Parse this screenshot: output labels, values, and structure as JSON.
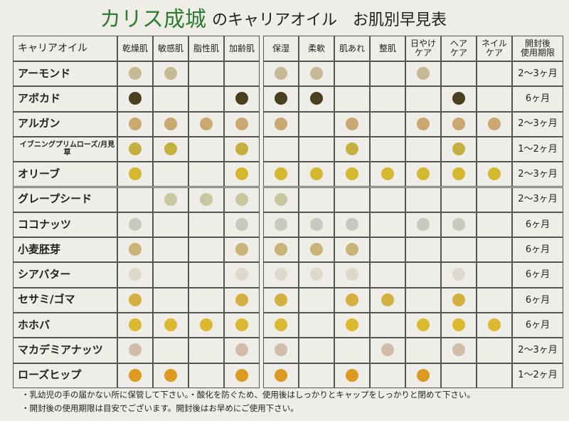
{
  "brand": "カリス成城",
  "title": "のキャリアオイル　お肌別早見表",
  "table": {
    "corner": "キャリアオイル",
    "columns": [
      "乾燥肌",
      "敏感肌",
      "脂性肌",
      "加齢肌",
      "保湿",
      "柔軟",
      "肌あれ",
      "整肌",
      "日やけ\nケア",
      "ヘア\nケア",
      "ネイル\nケア"
    ],
    "period_header": "開封後\n使用期限",
    "rows": [
      {
        "name": "アーモンド",
        "dots": [
          "#c8b996",
          "#c8b996",
          null,
          null,
          "#c8b996",
          "#c8b996",
          null,
          null,
          "#c8b996",
          null,
          null
        ],
        "period": "2〜3ヶ月"
      },
      {
        "name": "アボカド",
        "dots": [
          "#4a4020",
          null,
          null,
          "#4a4020",
          "#4a4020",
          "#4a4020",
          null,
          null,
          null,
          "#4a4020",
          null
        ],
        "period": "6ヶ月"
      },
      {
        "name": "アルガン",
        "dots": [
          "#c9a872",
          "#c9a872",
          "#c9a872",
          "#c9a872",
          "#c9a872",
          null,
          "#c9a872",
          null,
          "#c9a872",
          "#c9a872",
          "#c9a872"
        ],
        "period": "2〜3ヶ月"
      },
      {
        "name": "イブニングプリムローズ/月見草",
        "dots": [
          "#c4b040",
          "#c4b040",
          null,
          "#c4b040",
          null,
          null,
          "#c4b040",
          null,
          null,
          "#c4b040",
          null
        ],
        "period": "1〜2ヶ月"
      },
      {
        "name": "オリーブ",
        "dots": [
          "#d4b830",
          null,
          null,
          "#d4b830",
          "#d4b830",
          "#d4b830",
          "#d4b830",
          "#d4b830",
          "#d4b830",
          "#d4b830",
          "#d4b830"
        ],
        "period": "2〜3ヶ月"
      },
      {
        "name": "グレープシード",
        "dots": [
          null,
          "#c8c8a0",
          "#c8c8a0",
          "#c8c8a0",
          "#c8c8a0",
          null,
          null,
          null,
          null,
          null,
          null
        ],
        "period": "2〜3ヶ月"
      },
      {
        "name": "ココナッツ",
        "dots": [
          "#c8c8c0",
          null,
          null,
          "#c8c8c0",
          "#c8c8c0",
          "#c8c8c0",
          "#c8c8c0",
          null,
          "#c8c8c0",
          "#c8c8c0",
          null
        ],
        "period": "6ヶ月"
      },
      {
        "name": "小麦胚芽",
        "dots": [
          "#c8b478",
          null,
          null,
          "#c8b478",
          "#c8b478",
          "#c8b478",
          "#c8b478",
          null,
          null,
          null,
          null
        ],
        "period": "6ヶ月"
      },
      {
        "name": "シアバター",
        "dots": [
          "#dcd8cc",
          null,
          null,
          "#dcd8cc",
          "#dcd8cc",
          "#dcd8cc",
          "#dcd8cc",
          null,
          null,
          "#dcd8cc",
          null
        ],
        "period": "6ヶ月"
      },
      {
        "name": "セサミ/ゴマ",
        "dots": [
          "#d4b040",
          null,
          null,
          "#d4b040",
          "#d4b040",
          null,
          "#d4b040",
          "#d4b040",
          null,
          "#d4b040",
          null
        ],
        "period": "6ヶ月"
      },
      {
        "name": "ホホバ",
        "dots": [
          "#dcb830",
          "#dcb830",
          "#dcb830",
          "#dcb830",
          "#dcb830",
          null,
          "#dcb830",
          null,
          "#dcb830",
          "#dcb830",
          "#dcb830"
        ],
        "period": "6ヶ月"
      },
      {
        "name": "マカデミアナッツ",
        "dots": [
          "#d0bca8",
          null,
          null,
          "#d0bca8",
          "#d0bca8",
          null,
          null,
          "#d0bca8",
          null,
          "#d0bca8",
          null
        ],
        "period": "2〜3ヶ月"
      },
      {
        "name": "ローズヒップ",
        "dots": [
          "#dc9a20",
          "#dc9a20",
          null,
          "#dc9a20",
          "#dc9a20",
          null,
          "#dc9a20",
          null,
          "#dc9a20",
          null,
          null
        ],
        "period": "1〜2ヶ月"
      }
    ]
  },
  "notes": [
    "・乳幼児の手の届かない所に保管して下さい。・酸化を防ぐため、使用後はしっかりとキャップをしっかりと閉めて下さい。",
    "・開封後の使用期限は目安でございます。開封後はお早めにご使用下さい。"
  ]
}
